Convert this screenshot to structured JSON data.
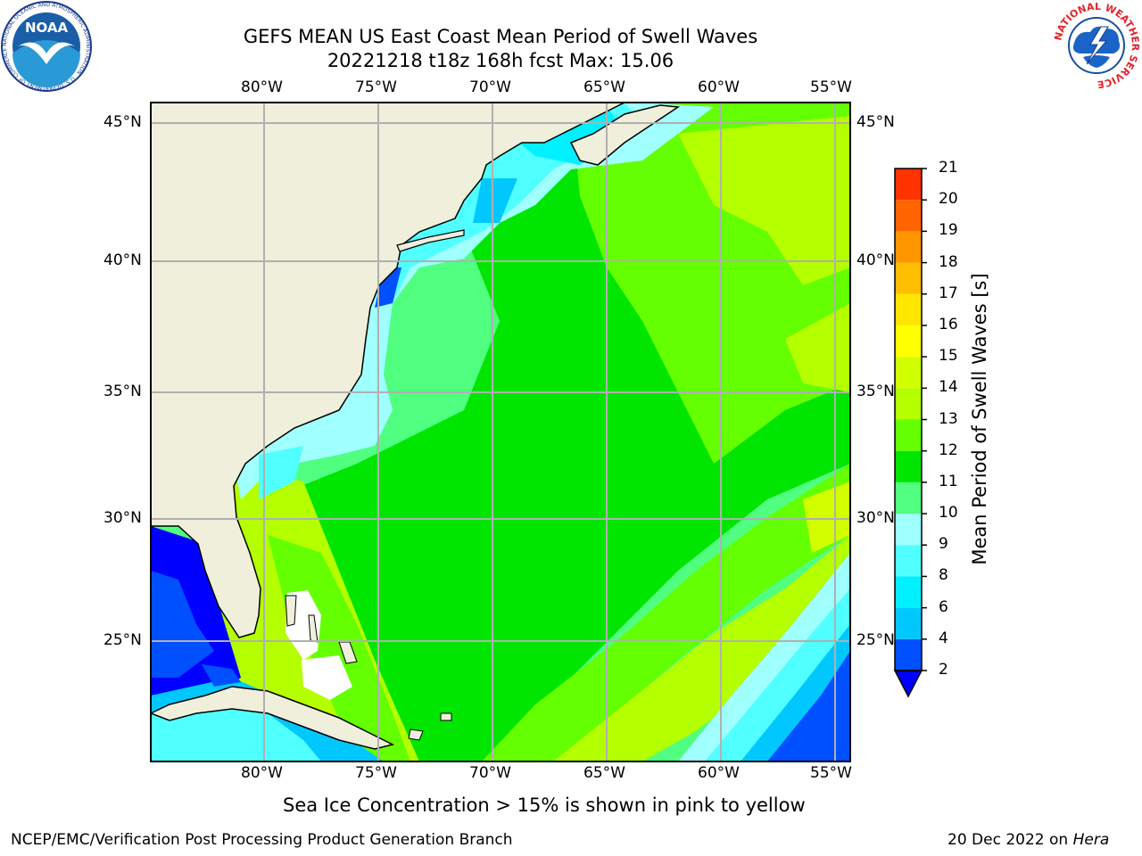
{
  "header": {
    "title_line1": "GEFS MEAN US East Coast Mean Period of Swell Waves",
    "title_line2": "20221218 t18z 168h fcst   Max: 15.06"
  },
  "logos": {
    "left": "NOAA",
    "left_ring_text": "NATIONAL OCEANIC AND ATMOSPHERIC ADMINISTRATION · U.S. DEPARTMENT OF COMMERCE",
    "right_ring_text": "NATIONAL WEATHER SERVICE"
  },
  "map": {
    "lon_labels": [
      "80°W",
      "75°W",
      "70°W",
      "65°W",
      "60°W",
      "55°W"
    ],
    "lat_labels": [
      "45°N",
      "40°N",
      "35°N",
      "30°N",
      "25°N"
    ],
    "land_color": "#efefdc",
    "grid_color": "#b0b0b0"
  },
  "colorbar": {
    "label": "Mean Period of Swell Waves [s]",
    "ticks": [
      "2",
      "4",
      "6",
      "8",
      "9",
      "10",
      "11",
      "12",
      "13",
      "14",
      "15",
      "16",
      "17",
      "18",
      "19",
      "20",
      "21"
    ],
    "colors": [
      "#0050ff",
      "#00c8ff",
      "#00f0ff",
      "#50ffff",
      "#a0ffff",
      "#50ff80",
      "#00e600",
      "#64ff00",
      "#b4ff00",
      "#d2ff00",
      "#ffff00",
      "#ffe600",
      "#ffbe00",
      "#ff9600",
      "#ff6400",
      "#ff3200"
    ],
    "under_color": "#0000ff"
  },
  "footer": {
    "ice_note": "Sea Ice Concentration > 15% is shown in pink to yellow",
    "left": "NCEP/EMC/Verification Post Processing Product Generation Branch",
    "right_date": "20 Dec 2022 on ",
    "right_machine": "Hera"
  }
}
